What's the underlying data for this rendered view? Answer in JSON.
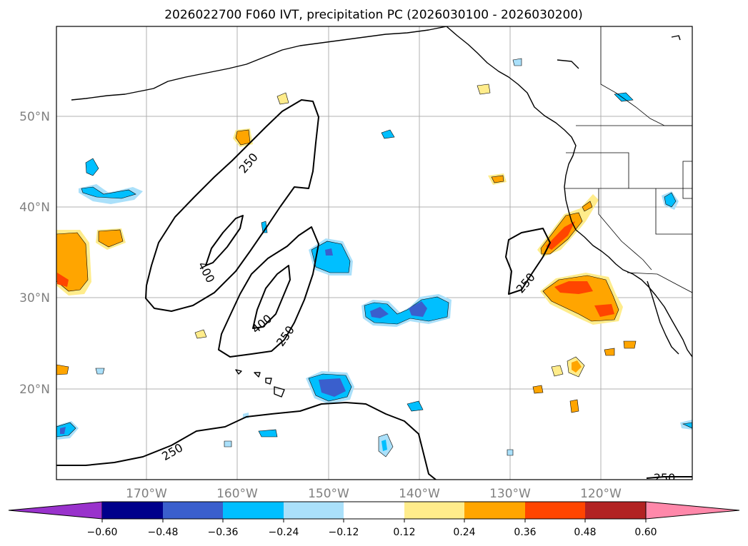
{
  "title": "2026022700 F060 IVT, precipitation PC (2026030100 - 2026030200)",
  "lat_labels": [
    "50°N",
    "40°N",
    "30°N",
    "20°N"
  ],
  "lon_labels": [
    "170°W",
    "160°W",
    "150°W",
    "140°W",
    "130°W",
    "120°W"
  ],
  "ivt_contour_labels": [
    "250",
    "400",
    "400",
    "250",
    "250",
    "250",
    "250"
  ],
  "colorbar": {
    "tick_labels": [
      "−0.60",
      "−0.48",
      "−0.36",
      "−0.24",
      "−0.12",
      "0.12",
      "0.24",
      "0.36",
      "0.48",
      "0.60"
    ],
    "colors": [
      "#9932cc",
      "#00008b",
      "#3a5fcd",
      "#00bfff",
      "#aae0fa",
      "#ffffff",
      "#ffec8b",
      "#ffa500",
      "#ff4500",
      "#b22222",
      "#ff88aa"
    ]
  }
}
